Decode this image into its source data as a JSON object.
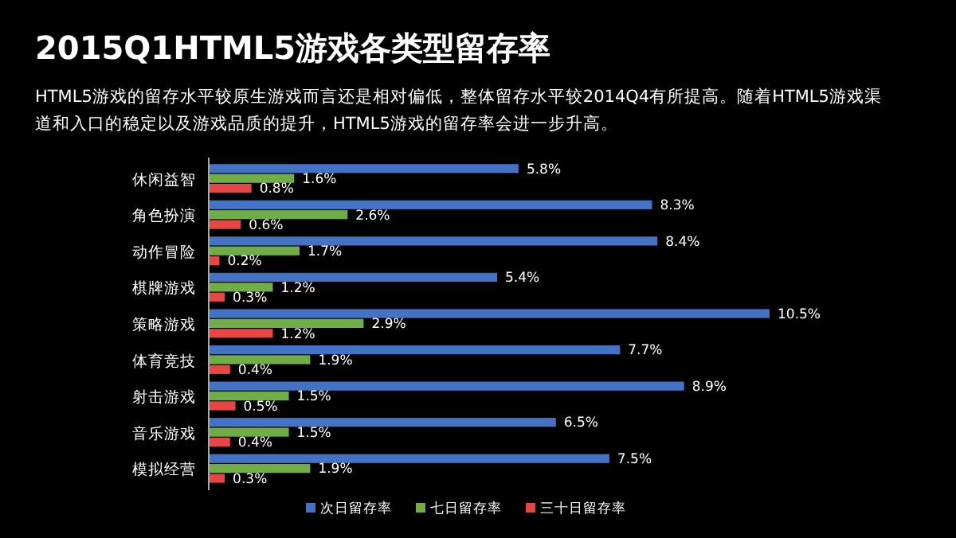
{
  "chart_data": {
    "type": "bar",
    "orientation": "horizontal",
    "title": "2015Q1HTML5游戏各类型留存率",
    "subtitle": "HTML5游戏的留存水平较原生游戏而言还是相对偏低，整体留存水平较2014Q4有所提高。随着HTML5游戏渠道和入口的稳定以及游戏品质的提升，HTML5游戏的留存率会进一步升高。",
    "categories": [
      "休闲益智",
      "角色扮演",
      "动作冒险",
      "棋牌游戏",
      "策略游戏",
      "体育竞技",
      "射击游戏",
      "音乐游戏",
      "模拟经营"
    ],
    "series": [
      {
        "name": "次日留存率",
        "color": "#4472c4",
        "values": [
          5.8,
          8.3,
          8.4,
          5.4,
          10.5,
          7.7,
          8.9,
          6.5,
          7.5
        ],
        "value_labels": [
          "5.8%",
          "8.3%",
          "8.4%",
          "5.4%",
          "10.5%",
          "7.7%",
          "8.9%",
          "6.5%",
          "7.5%"
        ]
      },
      {
        "name": "七日留存率",
        "color": "#70ad47",
        "values": [
          1.6,
          2.6,
          1.7,
          1.2,
          2.9,
          1.9,
          1.5,
          1.5,
          1.9
        ],
        "value_labels": [
          "1.6%",
          "2.6%",
          "1.7%",
          "1.2%",
          "2.9%",
          "1.9%",
          "1.5%",
          "1.5%",
          "1.9%"
        ]
      },
      {
        "name": "三十日留存率",
        "color": "#e84646",
        "values": [
          0.8,
          0.6,
          0.2,
          0.3,
          1.2,
          0.4,
          0.5,
          0.4,
          0.3
        ],
        "value_labels": [
          "0.8%",
          "0.6%",
          "0.2%",
          "0.3%",
          "1.2%",
          "0.4%",
          "0.5%",
          "0.4%",
          "0.3%"
        ]
      }
    ],
    "legend": "bottom"
  }
}
